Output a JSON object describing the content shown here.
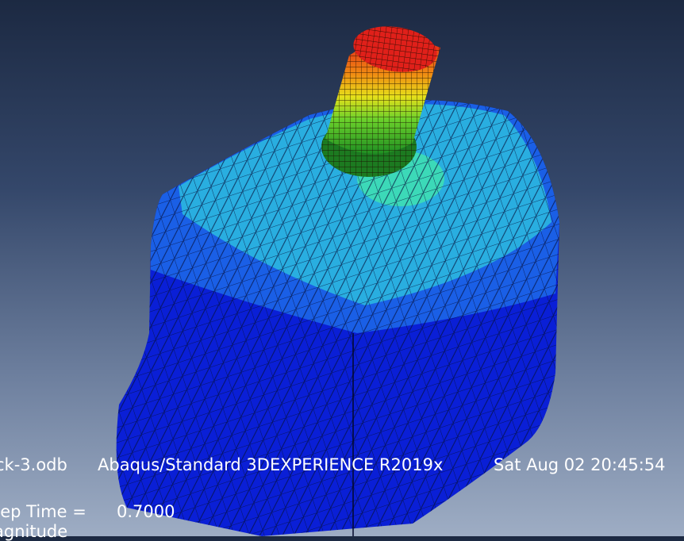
{
  "viewport": {
    "title_block": {
      "odb_name": "ck-3.odb",
      "solver": "Abaqus/Standard 3DEXPERIENCE R2019x",
      "timestamp": "Sat Aug 02 20:45:54"
    },
    "state_block": {
      "step_time_label": "tep Time =",
      "step_time_value": "0.7000",
      "field_name": "agnitude"
    }
  },
  "colors": {
    "contour_low": "#0a1fd6",
    "contour_mid_low": "#1a5fe6",
    "contour_mid": "#29aee0",
    "contour_high_mid": "#7fe34a",
    "contour_high": "#e8231a"
  }
}
